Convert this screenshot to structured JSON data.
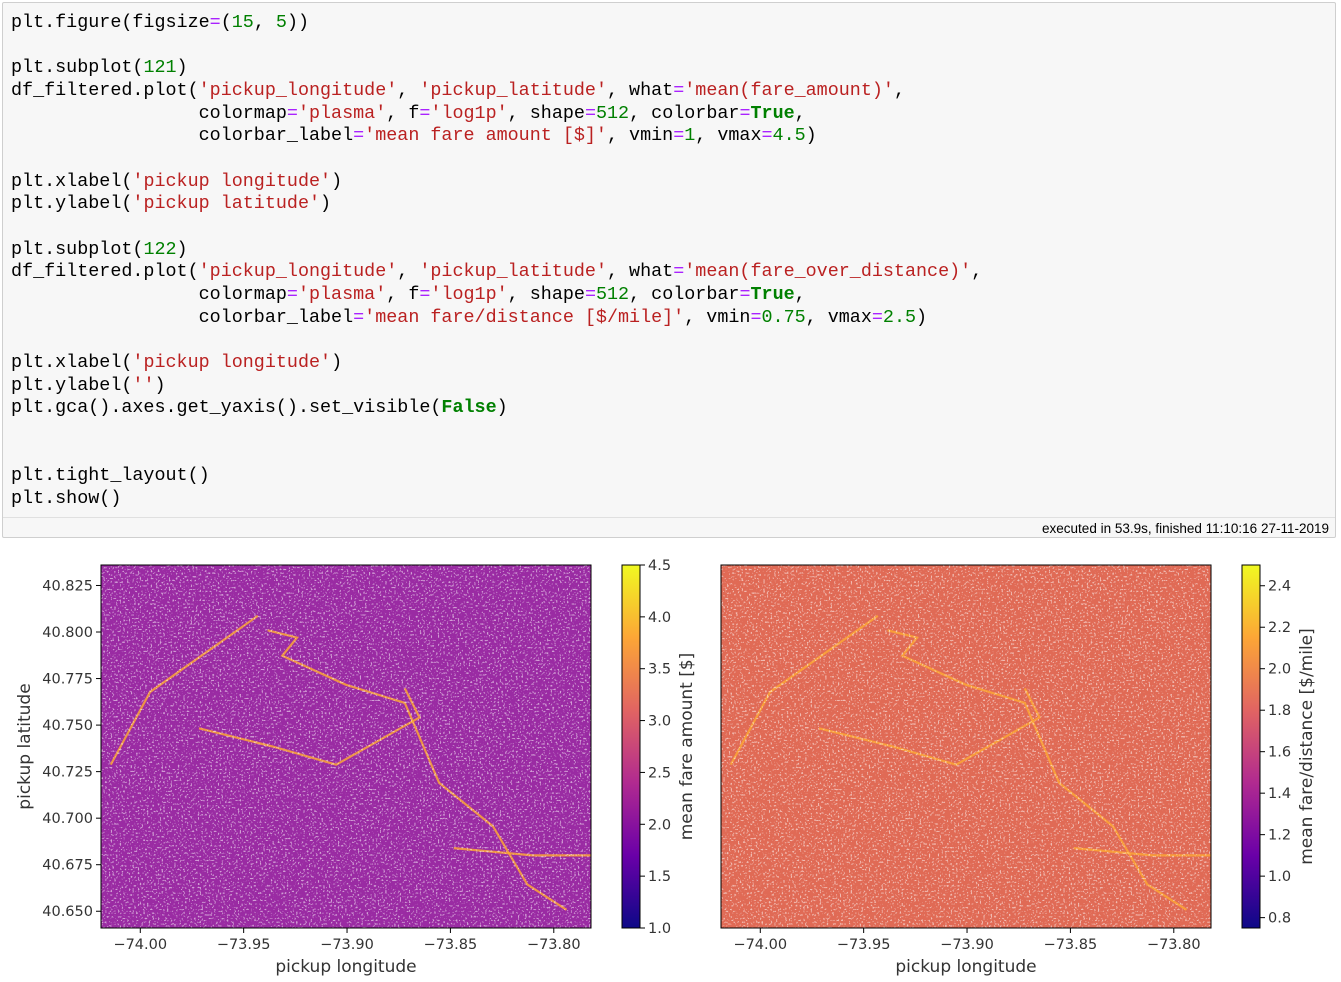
{
  "code_cell": {
    "lines": [
      [
        {
          "t": "plt.figure(figsize",
          "c": "#000000"
        },
        {
          "t": "=",
          "c": "#aa22ff"
        },
        {
          "t": "(",
          "c": "#000000"
        },
        {
          "t": "15",
          "c": "#008000"
        },
        {
          "t": ", ",
          "c": "#000000"
        },
        {
          "t": "5",
          "c": "#008000"
        },
        {
          "t": "))",
          "c": "#000000"
        }
      ],
      [],
      [
        {
          "t": "plt.subplot(",
          "c": "#000000"
        },
        {
          "t": "121",
          "c": "#008000"
        },
        {
          "t": ")",
          "c": "#000000"
        }
      ],
      [
        {
          "t": "df_filtered.plot(",
          "c": "#000000"
        },
        {
          "t": "'pickup_longitude'",
          "c": "#ba2121"
        },
        {
          "t": ", ",
          "c": "#000000"
        },
        {
          "t": "'pickup_latitude'",
          "c": "#ba2121"
        },
        {
          "t": ", what",
          "c": "#000000"
        },
        {
          "t": "=",
          "c": "#aa22ff"
        },
        {
          "t": "'mean(fare_amount)'",
          "c": "#ba2121"
        },
        {
          "t": ",",
          "c": "#000000"
        }
      ],
      [
        {
          "t": "                 colormap",
          "c": "#000000"
        },
        {
          "t": "=",
          "c": "#aa22ff"
        },
        {
          "t": "'plasma'",
          "c": "#ba2121"
        },
        {
          "t": ", f",
          "c": "#000000"
        },
        {
          "t": "=",
          "c": "#aa22ff"
        },
        {
          "t": "'log1p'",
          "c": "#ba2121"
        },
        {
          "t": ", shape",
          "c": "#000000"
        },
        {
          "t": "=",
          "c": "#aa22ff"
        },
        {
          "t": "512",
          "c": "#008000"
        },
        {
          "t": ", colorbar",
          "c": "#000000"
        },
        {
          "t": "=",
          "c": "#aa22ff"
        },
        {
          "t": "True",
          "c": "#008000",
          "b": true
        },
        {
          "t": ",",
          "c": "#000000"
        }
      ],
      [
        {
          "t": "                 colorbar_label",
          "c": "#000000"
        },
        {
          "t": "=",
          "c": "#aa22ff"
        },
        {
          "t": "'mean fare amount [$]'",
          "c": "#ba2121"
        },
        {
          "t": ", vmin",
          "c": "#000000"
        },
        {
          "t": "=",
          "c": "#aa22ff"
        },
        {
          "t": "1",
          "c": "#008000"
        },
        {
          "t": ", vmax",
          "c": "#000000"
        },
        {
          "t": "=",
          "c": "#aa22ff"
        },
        {
          "t": "4.5",
          "c": "#008000"
        },
        {
          "t": ")",
          "c": "#000000"
        }
      ],
      [],
      [
        {
          "t": "plt.xlabel(",
          "c": "#000000"
        },
        {
          "t": "'pickup longitude'",
          "c": "#ba2121"
        },
        {
          "t": ")",
          "c": "#000000"
        }
      ],
      [
        {
          "t": "plt.ylabel(",
          "c": "#000000"
        },
        {
          "t": "'pickup latitude'",
          "c": "#ba2121"
        },
        {
          "t": ")",
          "c": "#000000"
        }
      ],
      [],
      [
        {
          "t": "plt.subplot(",
          "c": "#000000"
        },
        {
          "t": "122",
          "c": "#008000"
        },
        {
          "t": ")",
          "c": "#000000"
        }
      ],
      [
        {
          "t": "df_filtered.plot(",
          "c": "#000000"
        },
        {
          "t": "'pickup_longitude'",
          "c": "#ba2121"
        },
        {
          "t": ", ",
          "c": "#000000"
        },
        {
          "t": "'pickup_latitude'",
          "c": "#ba2121"
        },
        {
          "t": ", what",
          "c": "#000000"
        },
        {
          "t": "=",
          "c": "#aa22ff"
        },
        {
          "t": "'mean(fare_over_distance)'",
          "c": "#ba2121"
        },
        {
          "t": ",",
          "c": "#000000"
        }
      ],
      [
        {
          "t": "                 colormap",
          "c": "#000000"
        },
        {
          "t": "=",
          "c": "#aa22ff"
        },
        {
          "t": "'plasma'",
          "c": "#ba2121"
        },
        {
          "t": ", f",
          "c": "#000000"
        },
        {
          "t": "=",
          "c": "#aa22ff"
        },
        {
          "t": "'log1p'",
          "c": "#ba2121"
        },
        {
          "t": ", shape",
          "c": "#000000"
        },
        {
          "t": "=",
          "c": "#aa22ff"
        },
        {
          "t": "512",
          "c": "#008000"
        },
        {
          "t": ", colorbar",
          "c": "#000000"
        },
        {
          "t": "=",
          "c": "#aa22ff"
        },
        {
          "t": "True",
          "c": "#008000",
          "b": true
        },
        {
          "t": ",",
          "c": "#000000"
        }
      ],
      [
        {
          "t": "                 colorbar_label",
          "c": "#000000"
        },
        {
          "t": "=",
          "c": "#aa22ff"
        },
        {
          "t": "'mean fare/distance [$/mile]'",
          "c": "#ba2121"
        },
        {
          "t": ", vmin",
          "c": "#000000"
        },
        {
          "t": "=",
          "c": "#aa22ff"
        },
        {
          "t": "0.75",
          "c": "#008000"
        },
        {
          "t": ", vmax",
          "c": "#000000"
        },
        {
          "t": "=",
          "c": "#aa22ff"
        },
        {
          "t": "2.5",
          "c": "#008000"
        },
        {
          "t": ")",
          "c": "#000000"
        }
      ],
      [],
      [
        {
          "t": "plt.xlabel(",
          "c": "#000000"
        },
        {
          "t": "'pickup longitude'",
          "c": "#ba2121"
        },
        {
          "t": ")",
          "c": "#000000"
        }
      ],
      [
        {
          "t": "plt.ylabel(",
          "c": "#000000"
        },
        {
          "t": "''",
          "c": "#ba2121"
        },
        {
          "t": ")",
          "c": "#000000"
        }
      ],
      [
        {
          "t": "plt.gca().axes.get_yaxis().set_visible(",
          "c": "#000000"
        },
        {
          "t": "False",
          "c": "#008000",
          "b": true
        },
        {
          "t": ")",
          "c": "#000000"
        }
      ],
      [],
      [],
      [
        {
          "t": "plt.tight_layout()",
          "c": "#000000"
        }
      ],
      [
        {
          "t": "plt.show()",
          "c": "#000000"
        }
      ]
    ]
  },
  "execution_info": "executed in 53.9s, finished 11:10:16 27-11-2019",
  "chart_data": [
    {
      "type": "heatmap",
      "xlabel": "pickup longitude",
      "ylabel": "pickup latitude",
      "xlim": [
        -74.019,
        -73.782
      ],
      "ylim": [
        40.641,
        40.836
      ],
      "xticks": [
        {
          "value": -74.0,
          "label": "−74.00"
        },
        {
          "value": -73.95,
          "label": "−73.95"
        },
        {
          "value": -73.9,
          "label": "−73.90"
        },
        {
          "value": -73.85,
          "label": "−73.85"
        },
        {
          "value": -73.8,
          "label": "−73.80"
        }
      ],
      "yticks": [
        {
          "value": 40.65,
          "label": "40.650"
        },
        {
          "value": 40.675,
          "label": "40.675"
        },
        {
          "value": 40.7,
          "label": "40.700"
        },
        {
          "value": 40.725,
          "label": "40.725"
        },
        {
          "value": 40.75,
          "label": "40.750"
        },
        {
          "value": 40.775,
          "label": "40.775"
        },
        {
          "value": 40.8,
          "label": "40.800"
        },
        {
          "value": 40.825,
          "label": "40.825"
        }
      ],
      "colorbar": {
        "label": "mean fare amount [$]",
        "lim": [
          1,
          4.5
        ],
        "colormap": [
          "#0d0887",
          "#6a00a8",
          "#b12a90",
          "#e16462",
          "#fca636",
          "#f0f921"
        ],
        "ticks": [
          {
            "value": 1,
            "label": "1.0"
          },
          1.5,
          {
            "value": 2,
            "label": "2.0"
          },
          2.5,
          {
            "value": 3,
            "label": "3.0"
          },
          3.5,
          {
            "value": 4,
            "label": "4.0"
          },
          4.5
        ]
      },
      "image_color": "#9a2ba3"
    },
    {
      "type": "heatmap",
      "xlabel": "pickup longitude",
      "xlim": [
        -74.019,
        -73.782
      ],
      "ylim": [
        40.641,
        40.836
      ],
      "xticks": [
        {
          "value": -74.0,
          "label": "−74.00"
        },
        {
          "value": -73.95,
          "label": "−73.95"
        },
        {
          "value": -73.9,
          "label": "−73.90"
        },
        {
          "value": -73.85,
          "label": "−73.85"
        },
        {
          "value": -73.8,
          "label": "−73.80"
        }
      ],
      "colorbar": {
        "label": "mean fare/distance [$/mile]",
        "lim": [
          0.75,
          2.5
        ],
        "colormap": [
          "#0d0887",
          "#6a00a8",
          "#b12a90",
          "#e16462",
          "#fca636",
          "#f0f921"
        ],
        "ticks": [
          0.8,
          {
            "value": 1,
            "label": "1.0"
          },
          1.2,
          1.4,
          1.6,
          1.8,
          {
            "value": 2,
            "label": "2.0"
          },
          2.2,
          2.4
        ]
      },
      "image_color": "#e06a55"
    }
  ]
}
